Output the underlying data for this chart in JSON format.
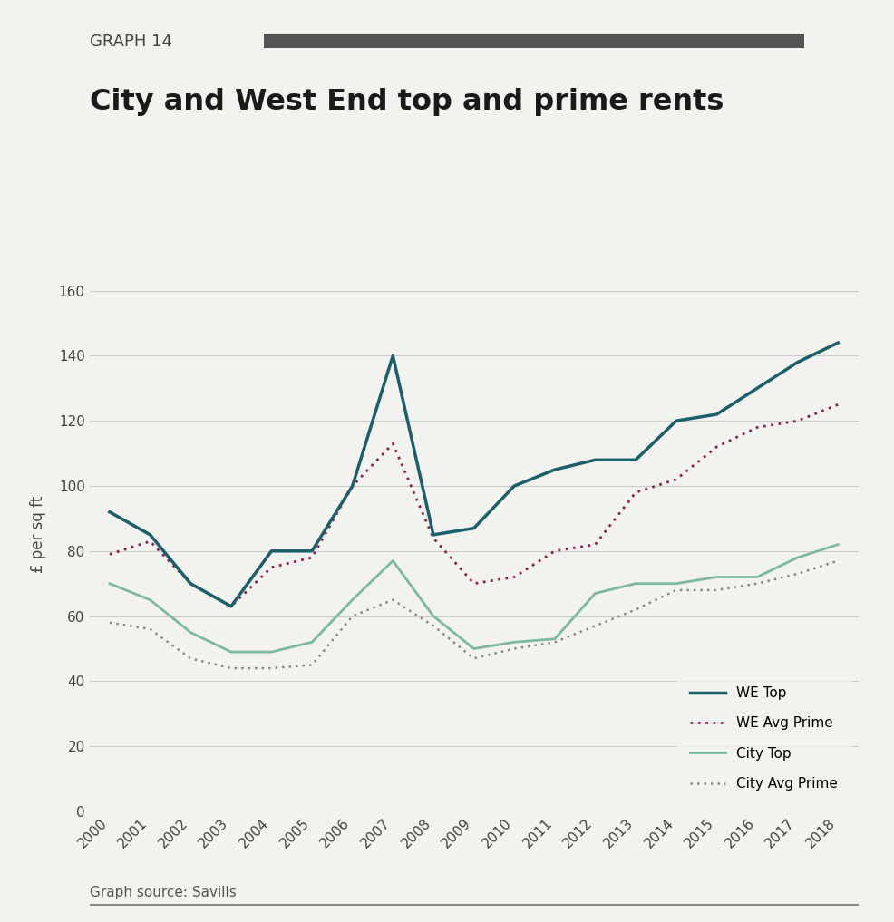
{
  "years": [
    2000,
    2001,
    2002,
    2003,
    2004,
    2005,
    2006,
    2007,
    2008,
    2009,
    2010,
    2011,
    2012,
    2013,
    2014,
    2015,
    2016,
    2017,
    2018
  ],
  "we_top": [
    92,
    85,
    70,
    63,
    80,
    80,
    100,
    140,
    85,
    87,
    100,
    105,
    108,
    108,
    120,
    122,
    130,
    138,
    144
  ],
  "we_avg_prime": [
    79,
    83,
    70,
    63,
    75,
    78,
    100,
    113,
    84,
    70,
    72,
    80,
    82,
    98,
    102,
    112,
    118,
    120,
    125
  ],
  "city_top": [
    70,
    65,
    55,
    49,
    49,
    52,
    65,
    77,
    60,
    50,
    52,
    53,
    67,
    70,
    70,
    72,
    72,
    78,
    82
  ],
  "city_avg_prime": [
    58,
    56,
    47,
    44,
    44,
    45,
    60,
    65,
    57,
    47,
    50,
    52,
    57,
    62,
    68,
    68,
    70,
    73,
    77
  ],
  "we_top_color": "#1a5f6a",
  "we_avg_prime_color": "#8b2252",
  "city_top_color": "#7db8a0",
  "city_avg_prime_color": "#888888",
  "title_graph": "GRAPH 14",
  "title_main": "City and West End top and prime rents",
  "ylabel": "£ per sq ft",
  "source": "Graph source: Savills",
  "ylim": [
    0,
    170
  ],
  "yticks": [
    0,
    20,
    40,
    60,
    80,
    100,
    120,
    140,
    160
  ],
  "bg_color": "#f2f2ee",
  "legend_labels": [
    "WE Top",
    "WE Avg Prime",
    "City Top",
    "City Avg Prime"
  ],
  "header_bar_color": "#555555"
}
